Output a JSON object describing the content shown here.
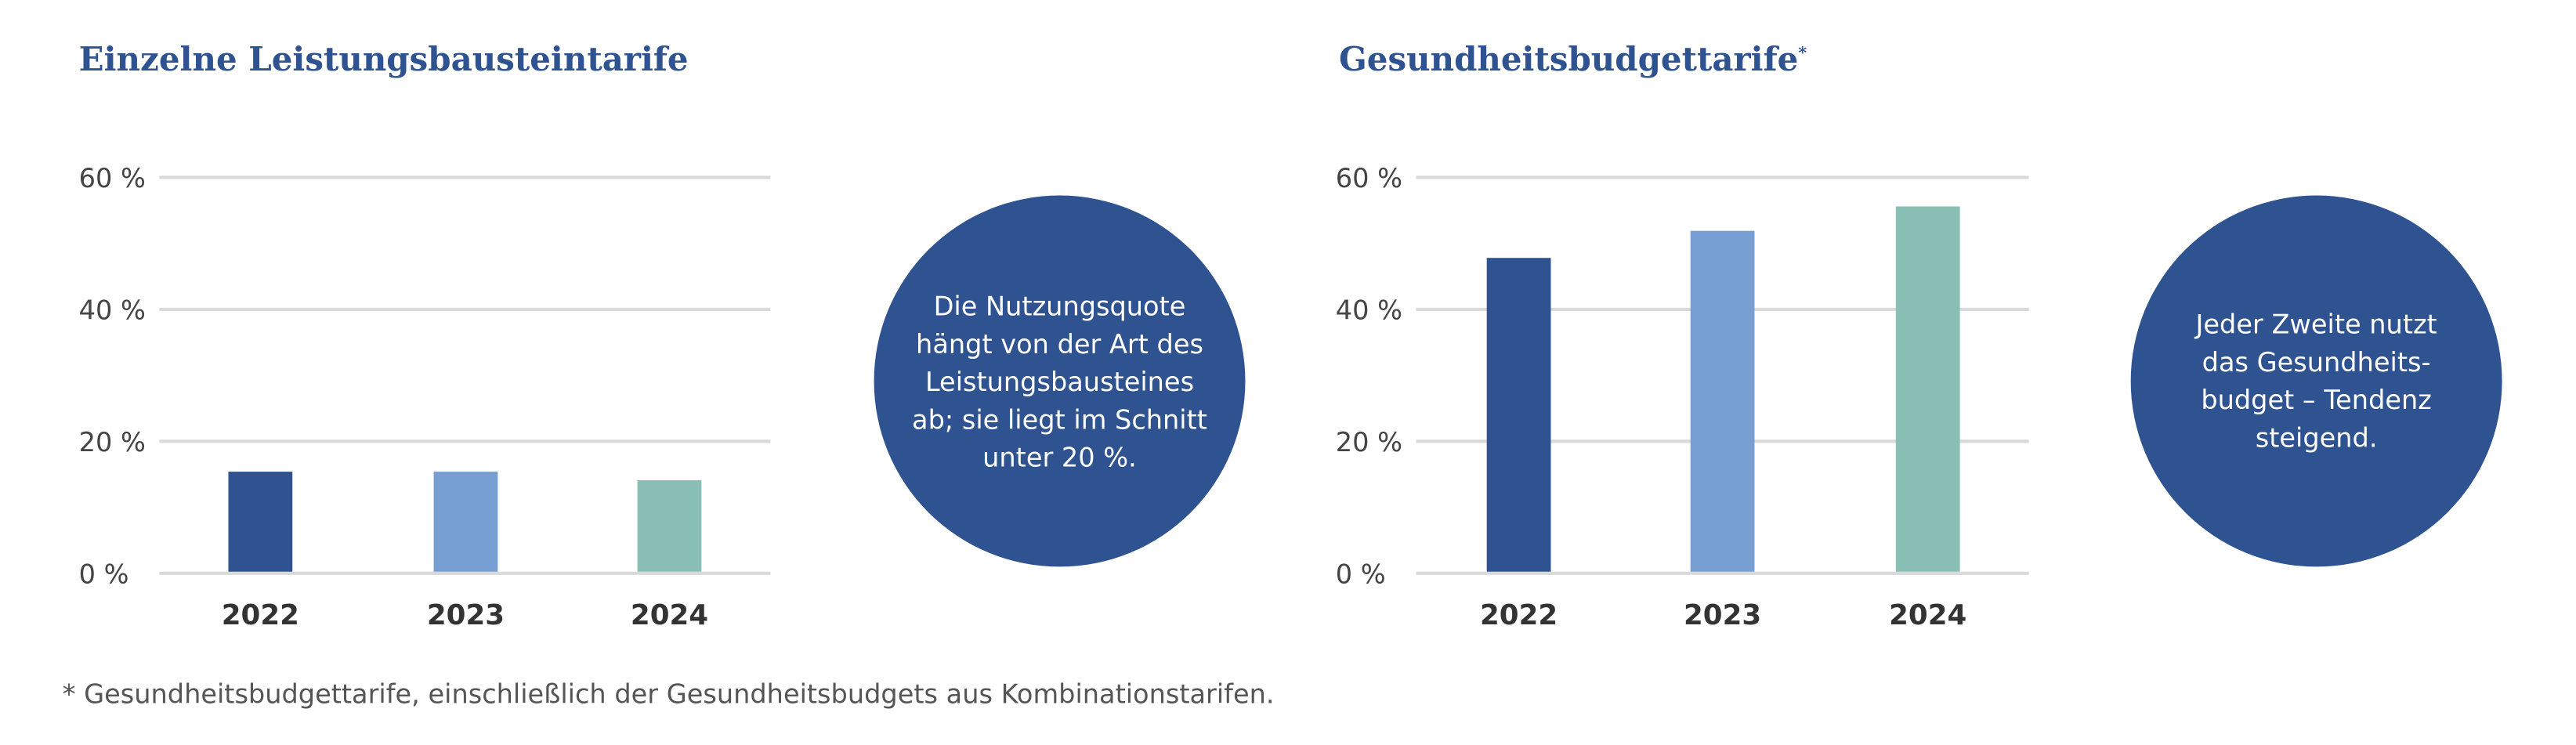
{
  "chart_data": [
    {
      "type": "bar",
      "title": "Einzelne Leistungsbausteintarife",
      "categories": [
        "2022",
        "2023",
        "2024"
      ],
      "values": [
        15.4,
        15.4,
        14.1
      ],
      "colors": [
        "#2e5390",
        "#789fd4",
        "#89bfb4"
      ],
      "yticks": [
        "0 %",
        "20 %",
        "40 %",
        "60 %"
      ],
      "ylim": [
        0,
        60
      ],
      "xlabel": "",
      "ylabel": "",
      "grid": true
    },
    {
      "type": "bar",
      "title": "Gesundheitsbudgettarife",
      "title_mark": "*",
      "categories": [
        "2022",
        "2023",
        "2024"
      ],
      "values": [
        47.8,
        51.9,
        55.6
      ],
      "colors": [
        "#2e5390",
        "#789fd4",
        "#89bfb4"
      ],
      "yticks": [
        "0 %",
        "20 %",
        "40 %",
        "60 %"
      ],
      "ylim": [
        0,
        60
      ],
      "xlabel": "",
      "ylabel": "",
      "grid": true
    }
  ],
  "callouts": [
    {
      "lines": [
        "Die Nutzungsquote",
        "hängt von der Art des",
        "Leistungsbausteines",
        "ab; sie liegt im Schnitt",
        "unter 20 %."
      ]
    },
    {
      "lines": [
        "Jeder Zweite nutzt",
        "das Gesundheits-",
        "budget – Tendenz",
        "steigend."
      ]
    }
  ],
  "footnote": "* Gesundheitsbudgettarife, einschließlich der Gesundheitsbudgets aus Kombinationstarifen.",
  "colors": {
    "accent": "#2e5390",
    "grid": "#d9d9d9"
  }
}
